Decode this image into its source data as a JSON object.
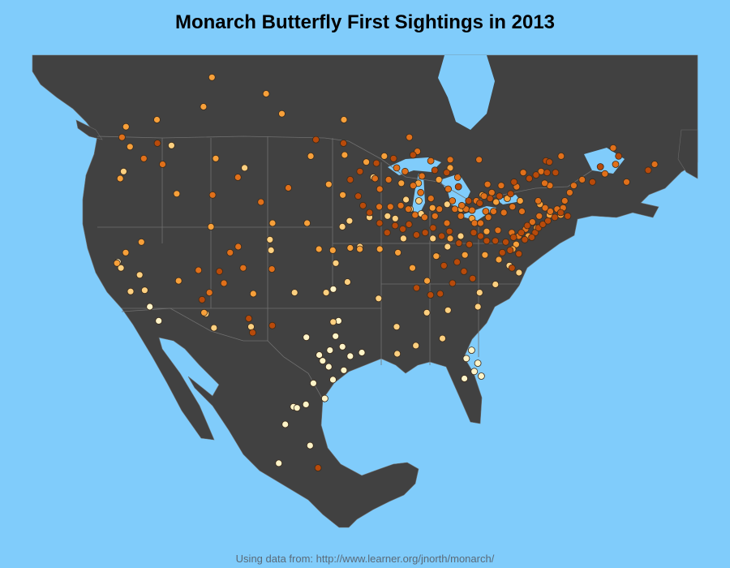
{
  "title": "Monarch Butterfly First Sightings in 2013",
  "footer": "Using data from: http://www.learner.org/jnorth/monarch/",
  "colors": {
    "ocean": "#80ccfb",
    "land": "#414141",
    "early": "#fff4c8",
    "mid_early": "#fdd080",
    "mid": "#f7a03a",
    "mid_late": "#e0701a",
    "late": "#b84a0a"
  },
  "sightings": {
    "early": [
      [
        -98.5,
        29.4
      ],
      [
        -97.7,
        30.3
      ],
      [
        -96.8,
        32.8
      ],
      [
        -95.4,
        29.8
      ],
      [
        -97.1,
        31.5
      ],
      [
        -98.2,
        26.2
      ],
      [
        -99.5,
        27.5
      ],
      [
        -100.4,
        31.4
      ],
      [
        -97.3,
        27.8
      ],
      [
        -96.3,
        30.6
      ],
      [
        -98.9,
        29.9
      ],
      [
        -97.8,
        28.9
      ],
      [
        -81.7,
        30.3
      ],
      [
        -82.5,
        27.9
      ],
      [
        -81.4,
        28.5
      ],
      [
        -80.6,
        28.1
      ],
      [
        -82.3,
        29.6
      ],
      [
        -81.0,
        29.2
      ],
      [
        -101.7,
        25.5
      ],
      [
        -103.3,
        20.7
      ],
      [
        -100.3,
        25.7
      ],
      [
        -117.2,
        32.8
      ],
      [
        -118.3,
        34.0
      ],
      [
        -122.3,
        37.8
      ],
      [
        -102.6,
        24.0
      ],
      [
        -96.1,
        28.6
      ],
      [
        -97.5,
        35.5
      ],
      [
        -94.1,
        30.1
      ],
      [
        -99.8,
        22.2
      ],
      [
        -101.3,
        25.4
      ]
    ],
    "mid_early": [
      [
        -121.9,
        37.3
      ],
      [
        -119.7,
        36.7
      ],
      [
        -120.6,
        35.3
      ],
      [
        -119.0,
        35.4
      ],
      [
        -111.9,
        33.4
      ],
      [
        -110.9,
        32.2
      ],
      [
        -106.7,
        32.3
      ],
      [
        -98.3,
        35.2
      ],
      [
        -97.3,
        37.7
      ],
      [
        -95.9,
        36.1
      ],
      [
        -92.3,
        34.7
      ],
      [
        -90.2,
        32.3
      ],
      [
        -90.1,
        30.0
      ],
      [
        -88.0,
        30.7
      ],
      [
        -86.8,
        33.5
      ],
      [
        -84.4,
        33.7
      ],
      [
        -81.0,
        34.0
      ],
      [
        -85.0,
        31.3
      ],
      [
        -96.7,
        40.8
      ],
      [
        -93.6,
        41.6
      ],
      [
        -89.6,
        39.8
      ],
      [
        -87.6,
        41.9
      ],
      [
        -85.7,
        38.3
      ],
      [
        -84.5,
        39.1
      ],
      [
        -83.0,
        40.0
      ],
      [
        -86.2,
        39.8
      ],
      [
        -88.9,
        42.3
      ],
      [
        -91.5,
        41.7
      ],
      [
        -94.6,
        39.1
      ],
      [
        -122.7,
        45.5
      ],
      [
        -117.4,
        47.7
      ],
      [
        -104.8,
        38.8
      ],
      [
        -105.0,
        39.7
      ],
      [
        -108.5,
        45.8
      ],
      [
        -93.3,
        45.0
      ],
      [
        -89.4,
        43.1
      ],
      [
        -95.9,
        41.3
      ],
      [
        -87.9,
        43.0
      ],
      [
        -90.6,
        41.5
      ],
      [
        -84.6,
        42.7
      ],
      [
        -97.4,
        32.7
      ],
      [
        -101.9,
        35.2
      ],
      [
        -79.0,
        35.9
      ],
      [
        -80.8,
        35.2
      ],
      [
        -77.4,
        37.5
      ],
      [
        -76.3,
        36.9
      ]
    ],
    "mid": [
      [
        -121.5,
        38.6
      ],
      [
        -122.4,
        37.7
      ],
      [
        -119.8,
        39.5
      ],
      [
        -115.2,
        36.2
      ],
      [
        -112.1,
        33.5
      ],
      [
        -106.6,
        35.1
      ],
      [
        -122.3,
        47.6
      ],
      [
        -123.0,
        44.9
      ],
      [
        -116.2,
        43.6
      ],
      [
        -112.0,
        46.6
      ],
      [
        -111.9,
        40.8
      ],
      [
        -104.8,
        41.1
      ],
      [
        -100.8,
        46.8
      ],
      [
        -96.8,
        43.5
      ],
      [
        -98.5,
        44.4
      ],
      [
        -96.8,
        46.9
      ],
      [
        -94.2,
        46.3
      ],
      [
        -92.1,
        46.8
      ],
      [
        -90.0,
        44.5
      ],
      [
        -88.0,
        44.5
      ],
      [
        -86.3,
        42.4
      ],
      [
        -85.6,
        44.8
      ],
      [
        -84.3,
        45.8
      ],
      [
        -83.0,
        42.3
      ],
      [
        -81.7,
        41.5
      ],
      [
        -80.0,
        40.4
      ],
      [
        -78.9,
        42.9
      ],
      [
        -77.6,
        43.2
      ],
      [
        -76.1,
        43.0
      ],
      [
        -73.8,
        42.7
      ],
      [
        -72.7,
        41.8
      ],
      [
        -71.4,
        41.8
      ],
      [
        -75.2,
        40.0
      ],
      [
        -74.2,
        40.7
      ],
      [
        -76.6,
        39.3
      ],
      [
        -77.0,
        38.9
      ],
      [
        -78.6,
        38.0
      ],
      [
        -80.2,
        38.4
      ],
      [
        -82.5,
        38.4
      ],
      [
        -84.2,
        39.8
      ],
      [
        -86.8,
        36.2
      ],
      [
        -85.8,
        38.3
      ],
      [
        -88.5,
        37.3
      ],
      [
        -90.2,
        38.6
      ],
      [
        -92.3,
        38.9
      ],
      [
        -94.6,
        38.9
      ],
      [
        -95.7,
        39.0
      ],
      [
        -97.7,
        38.8
      ],
      [
        -99.3,
        38.9
      ],
      [
        -100.8,
        41.1
      ],
      [
        -113.5,
        53.5
      ],
      [
        -114.1,
        51.0
      ],
      [
        -104.6,
        50.4
      ],
      [
        -106.7,
        52.1
      ],
      [
        -97.1,
        49.9
      ],
      [
        -123.1,
        49.3
      ],
      [
        -119.5,
        49.9
      ],
      [
        -79.4,
        43.7
      ],
      [
        -75.7,
        45.4
      ],
      [
        -80.5,
        43.5
      ]
    ],
    "mid_late": [
      [
        -79.4,
        43.7
      ],
      [
        -80.3,
        43.4
      ],
      [
        -81.2,
        43.0
      ],
      [
        -82.4,
        42.3
      ],
      [
        -75.7,
        45.4
      ],
      [
        -73.6,
        45.5
      ],
      [
        -71.2,
        46.8
      ],
      [
        -76.5,
        44.2
      ],
      [
        -78.3,
        44.3
      ],
      [
        -79.9,
        44.4
      ],
      [
        -80.9,
        46.5
      ],
      [
        -84.3,
        46.5
      ],
      [
        -86.6,
        46.4
      ],
      [
        -88.2,
        47.2
      ],
      [
        -89.2,
        48.4
      ],
      [
        -87.6,
        45.1
      ],
      [
        -85.5,
        42.3
      ],
      [
        -84.0,
        43.0
      ],
      [
        -83.7,
        42.3
      ],
      [
        -82.9,
        42.6
      ],
      [
        -81.4,
        41.1
      ],
      [
        -80.7,
        41.1
      ],
      [
        -79.8,
        41.6
      ],
      [
        -78.7,
        40.5
      ],
      [
        -77.1,
        40.3
      ],
      [
        -76.3,
        40.0
      ],
      [
        -75.5,
        40.6
      ],
      [
        -74.7,
        41.2
      ],
      [
        -73.9,
        41.7
      ],
      [
        -73.2,
        42.4
      ],
      [
        -72.6,
        42.1
      ],
      [
        -71.8,
        42.3
      ],
      [
        -71.1,
        42.4
      ],
      [
        -70.9,
        43.0
      ],
      [
        -70.3,
        43.7
      ],
      [
        -69.8,
        44.3
      ],
      [
        -68.8,
        44.8
      ],
      [
        -72.6,
        44.3
      ],
      [
        -73.2,
        44.5
      ],
      [
        -74.0,
        43.0
      ],
      [
        -75.9,
        42.1
      ],
      [
        -77.0,
        42.5
      ],
      [
        -78.0,
        42.0
      ],
      [
        -79.2,
        42.1
      ],
      [
        -80.1,
        42.1
      ],
      [
        -81.7,
        42.2
      ],
      [
        -83.0,
        41.7
      ],
      [
        -84.6,
        41.1
      ],
      [
        -86.0,
        41.7
      ],
      [
        -87.2,
        41.6
      ],
      [
        -88.3,
        41.8
      ],
      [
        -89.1,
        42.3
      ],
      [
        -90.0,
        42.6
      ],
      [
        -91.2,
        42.5
      ],
      [
        -92.5,
        42.5
      ],
      [
        -93.1,
        44.9
      ],
      [
        -92.5,
        44.0
      ],
      [
        -91.5,
        44.8
      ],
      [
        -90.6,
        45.8
      ],
      [
        -89.6,
        45.5
      ],
      [
        -88.6,
        44.3
      ],
      [
        -87.7,
        43.7
      ],
      [
        -86.5,
        43.2
      ],
      [
        -84.5,
        44.0
      ],
      [
        -83.4,
        45.0
      ],
      [
        -63.6,
        44.6
      ],
      [
        -66.1,
        45.3
      ],
      [
        -64.8,
        46.1
      ],
      [
        -65.0,
        47.5
      ],
      [
        -60.2,
        46.1
      ],
      [
        -113.0,
        37.1
      ],
      [
        -109.5,
        38.6
      ],
      [
        -108.6,
        39.1
      ],
      [
        -107.9,
        37.3
      ],
      [
        -104.6,
        37.2
      ],
      [
        -103.2,
        44.1
      ],
      [
        -106.3,
        42.9
      ],
      [
        -109.2,
        45.0
      ],
      [
        -118.2,
        46.1
      ],
      [
        -120.5,
        46.6
      ],
      [
        -112.0,
        43.5
      ],
      [
        -123.4,
        48.4
      ],
      [
        -110.0,
        36.0
      ],
      [
        -111.6,
        35.2
      ]
    ],
    "late": [
      [
        -77.3,
        38.8
      ],
      [
        -77.8,
        39.5
      ],
      [
        -76.9,
        39.9
      ],
      [
        -76.0,
        40.3
      ],
      [
        -75.3,
        40.9
      ],
      [
        -74.4,
        40.3
      ],
      [
        -74.0,
        40.7
      ],
      [
        -73.5,
        41.0
      ],
      [
        -72.9,
        41.3
      ],
      [
        -72.1,
        41.6
      ],
      [
        -71.4,
        42.0
      ],
      [
        -70.6,
        41.7
      ],
      [
        -74.8,
        39.9
      ],
      [
        -75.6,
        39.7
      ],
      [
        -76.3,
        38.5
      ],
      [
        -77.1,
        37.3
      ],
      [
        -78.2,
        38.6
      ],
      [
        -79.0,
        39.6
      ],
      [
        -80.0,
        39.6
      ],
      [
        -80.7,
        40.0
      ],
      [
        -81.5,
        40.3
      ],
      [
        -82.0,
        39.3
      ],
      [
        -83.2,
        39.4
      ],
      [
        -84.3,
        40.4
      ],
      [
        -85.2,
        40.0
      ],
      [
        -86.2,
        40.7
      ],
      [
        -87.1,
        40.3
      ],
      [
        -88.1,
        40.1
      ],
      [
        -89.0,
        41.0
      ],
      [
        -89.7,
        40.6
      ],
      [
        -90.6,
        40.9
      ],
      [
        -91.5,
        40.3
      ],
      [
        -92.4,
        41.1
      ],
      [
        -93.6,
        42.0
      ],
      [
        -94.4,
        42.6
      ],
      [
        -95.0,
        43.4
      ],
      [
        -96.0,
        44.8
      ],
      [
        -94.9,
        45.5
      ],
      [
        -93.0,
        46.2
      ],
      [
        -91.0,
        46.6
      ],
      [
        -88.7,
        46.9
      ],
      [
        -86.1,
        45.6
      ],
      [
        -84.7,
        45.4
      ],
      [
        -83.3,
        44.2
      ],
      [
        -82.1,
        43.0
      ],
      [
        -80.8,
        42.8
      ],
      [
        -79.6,
        43.2
      ],
      [
        -78.5,
        43.4
      ],
      [
        -77.2,
        43.6
      ],
      [
        -76.8,
        44.6
      ],
      [
        -75.0,
        44.9
      ],
      [
        -74.2,
        45.2
      ],
      [
        -72.9,
        45.4
      ],
      [
        -71.9,
        45.4
      ],
      [
        -73.0,
        46.4
      ],
      [
        -66.6,
        45.9
      ],
      [
        -67.6,
        44.6
      ],
      [
        -61.0,
        45.6
      ],
      [
        -64.4,
        46.8
      ],
      [
        -72.6,
        46.3
      ],
      [
        -85.3,
        35.1
      ],
      [
        -83.9,
        36.0
      ],
      [
        -86.4,
        35.0
      ],
      [
        -88.0,
        35.6
      ],
      [
        -84.9,
        37.5
      ],
      [
        -83.4,
        37.8
      ],
      [
        -82.6,
        37.0
      ],
      [
        -81.6,
        36.4
      ],
      [
        -104.3,
        32.4
      ],
      [
        -107.0,
        33.0
      ],
      [
        -110.6,
        37.0
      ],
      [
        -112.4,
        34.6
      ],
      [
        -106.5,
        31.8
      ],
      [
        -98.9,
        20.3
      ],
      [
        -119.1,
        47.9
      ],
      [
        -100.3,
        48.2
      ],
      [
        -97.0,
        47.9
      ]
    ]
  }
}
